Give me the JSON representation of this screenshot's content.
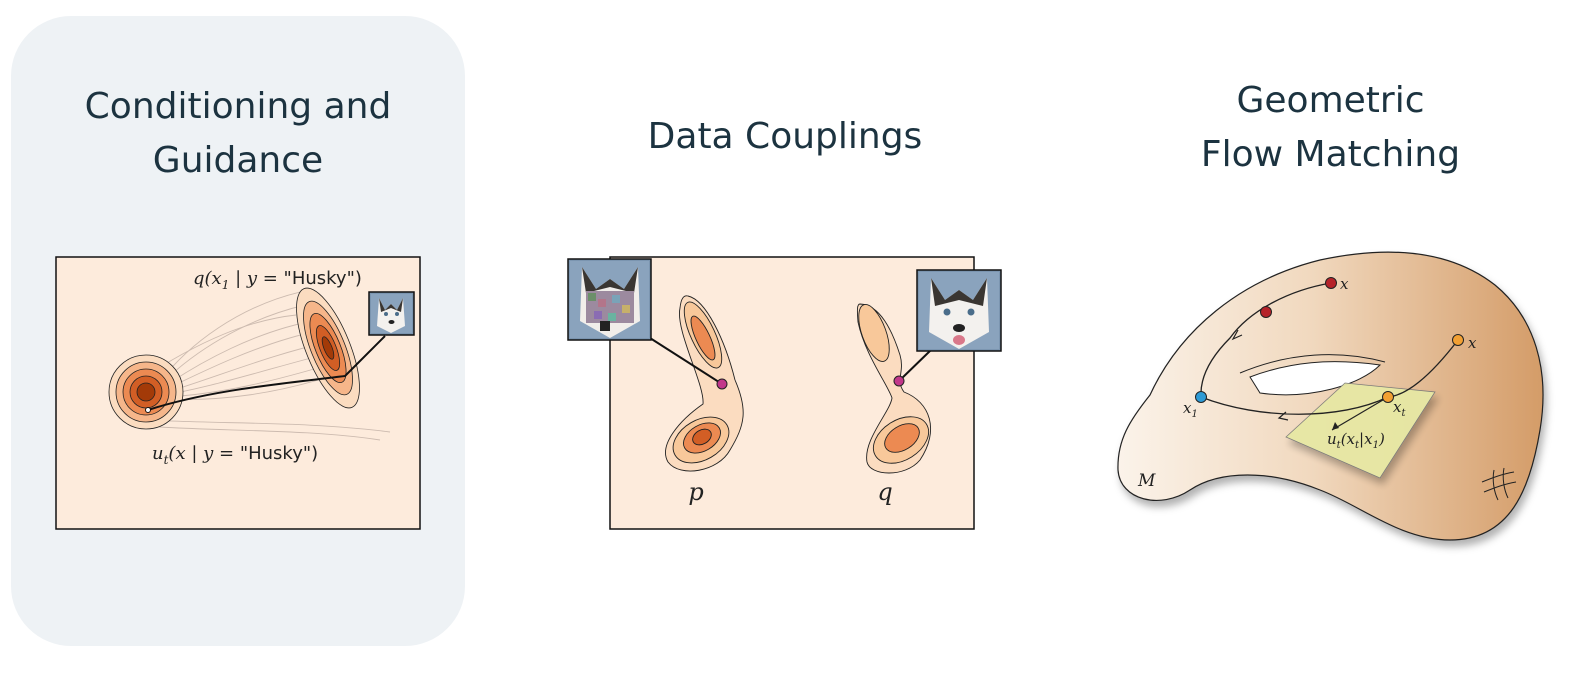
{
  "panels": {
    "conditioning": {
      "title_line1": "Conditioning and",
      "title_line2": "Guidance",
      "q_label_math": "q(x",
      "q_label_sub": "1",
      "q_label_rest": " | y = ",
      "q_label_str": "\"Husky\")",
      "u_label_math": "u",
      "u_label_sub": "t",
      "u_label_rest": "(x | y = ",
      "u_label_str": "\"Husky\")"
    },
    "couplings": {
      "title": "Data Couplings",
      "p_label": "p",
      "q_label": "q"
    },
    "geometric": {
      "title_line1": "Geometric",
      "title_line2": "Flow Matching",
      "x_top_label": "x",
      "x_right_label": "x",
      "x1_label": "x",
      "x1_sub": "1",
      "xt_label": "x",
      "xt_sub": "t",
      "velocity_label": "u",
      "velocity_sub": "t",
      "velocity_rest": "(x",
      "velocity_rest_sub": "t",
      "velocity_end": "|x",
      "velocity_end_sub": "1",
      "velocity_close": ")",
      "manifold_label": "M"
    }
  },
  "colors": {
    "title": "#1c3340",
    "panel_bg": "#eef2f5",
    "frame_fill": "#fdebdc",
    "density_dark": "#a33a08",
    "density_light": "#f8c89a",
    "magenta_point": "#c2378a",
    "red_point": "#b5232a",
    "orange_point": "#f2a033",
    "blue_point": "#2e9bd6",
    "tangent_plane": "#e7e8a4",
    "manifold_shade": "#d9a271"
  },
  "icons": [
    "husky-image",
    "noisy-husky-image"
  ]
}
